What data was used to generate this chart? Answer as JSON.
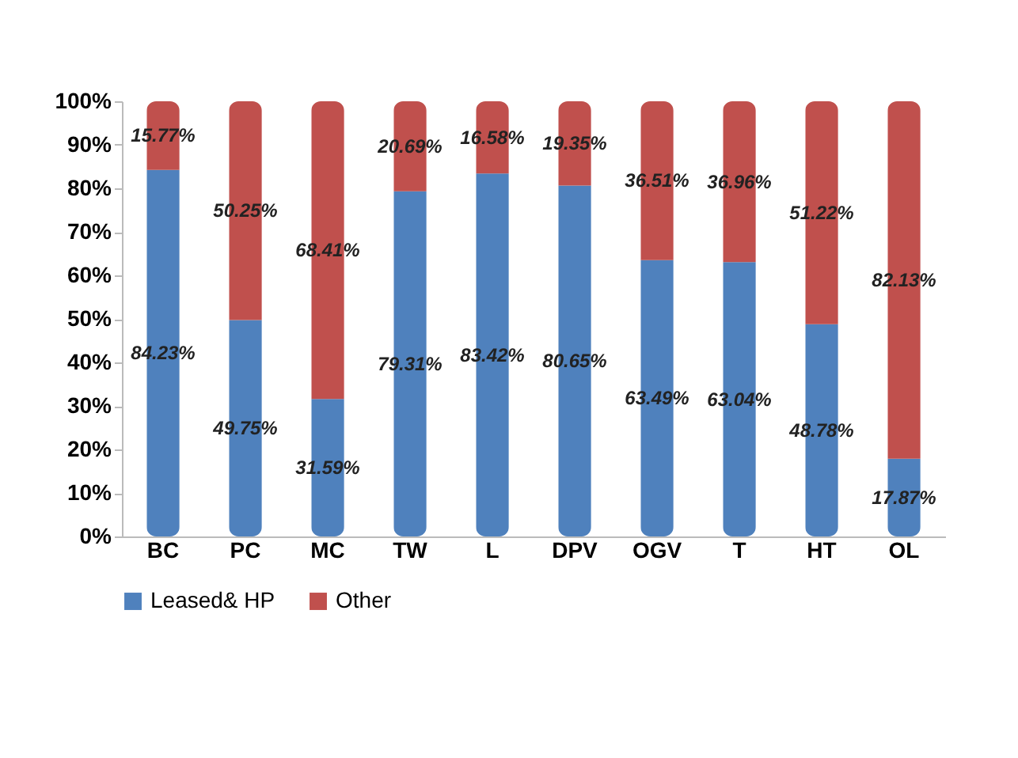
{
  "chart_data": {
    "type": "bar",
    "stacked": true,
    "categories": [
      "BC",
      "PC",
      "MC",
      "TW",
      "L",
      "DPV",
      "OGV",
      "T",
      "HT",
      "OL"
    ],
    "series": [
      {
        "name": "Leased& HP",
        "color": "#4f81bd",
        "values": [
          84.23,
          49.75,
          31.59,
          79.31,
          83.42,
          80.65,
          63.49,
          63.04,
          48.78,
          17.87
        ],
        "value_labels": [
          "84.23%",
          "49.75%",
          "31.59%",
          "79.31%",
          "83.42%",
          "80.65%",
          "63.49%",
          "63.04%",
          "48.78%",
          "17.87%"
        ]
      },
      {
        "name": "Other",
        "color": "#c0504d",
        "values": [
          15.77,
          50.25,
          68.41,
          20.69,
          16.58,
          19.35,
          36.51,
          36.96,
          51.22,
          82.13
        ],
        "value_labels": [
          "15.77%",
          "50.25%",
          "68.41%",
          "20.69%",
          "16.58%",
          "19.35%",
          "36.51%",
          "36.96%",
          "51.22%",
          "82.13%"
        ]
      }
    ],
    "ylim": [
      0,
      100
    ],
    "yticks": [
      {
        "value": 0,
        "label": "0%"
      },
      {
        "value": 10,
        "label": "10%"
      },
      {
        "value": 20,
        "label": "20%"
      },
      {
        "value": 30,
        "label": "30%"
      },
      {
        "value": 40,
        "label": "40%"
      },
      {
        "value": 50,
        "label": "50%"
      },
      {
        "value": 60,
        "label": "60%"
      },
      {
        "value": 70,
        "label": "70%"
      },
      {
        "value": 80,
        "label": "80%"
      },
      {
        "value": 90,
        "label": "90%"
      },
      {
        "value": 100,
        "label": "100%"
      }
    ],
    "grid": false,
    "legend": "bottom"
  }
}
